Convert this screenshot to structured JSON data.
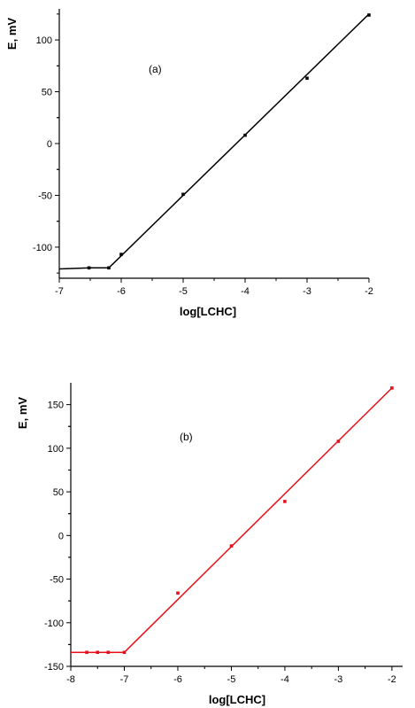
{
  "chart_data": [
    {
      "type": "line",
      "panel_label": "(a)",
      "xlabel": "log[LCHC]",
      "ylabel": "E, mV",
      "xlim": [
        -7,
        -2
      ],
      "ylim": [
        -130,
        130
      ],
      "x_ticks": [
        -7,
        -6,
        -5,
        -4,
        -3,
        -2
      ],
      "x_tick_labels": [
        "-7",
        "-6",
        "-5",
        "-4",
        "-3",
        "-2"
      ],
      "y_ticks": [
        -100,
        -50,
        0,
        50,
        100
      ],
      "y_tick_labels": [
        "-100",
        "-50",
        "0",
        "50",
        "100"
      ],
      "color": "#000000",
      "grid": false,
      "series": [
        {
          "x": [
            -6.52,
            -6.2,
            -6.0,
            -5.0,
            -4.0,
            -3.0,
            -2.0
          ],
          "y": [
            -120,
            -120,
            -107,
            -49,
            8,
            63,
            124
          ]
        }
      ],
      "fit_line": {
        "x": [
          -7.0,
          -6.5,
          -6.2,
          -2.0
        ],
        "y": [
          -121,
          -120,
          -120,
          125
        ]
      }
    },
    {
      "type": "line",
      "panel_label": "(b)",
      "xlabel": "log[LCHC]",
      "ylabel": "E, mV",
      "xlim": [
        -8,
        -1.8
      ],
      "ylim": [
        -150,
        175
      ],
      "x_ticks": [
        -8,
        -7,
        -6,
        -5,
        -4,
        -3,
        -2
      ],
      "x_tick_labels": [
        "-8",
        "-7",
        "-6",
        "-5",
        "-4",
        "-3",
        "-2"
      ],
      "y_ticks": [
        -150,
        -100,
        -50,
        0,
        50,
        100,
        150
      ],
      "y_tick_labels": [
        "-150",
        "-100",
        "-50",
        "0",
        "50",
        "100",
        "150"
      ],
      "color": "#e8101a",
      "grid": false,
      "series": [
        {
          "x": [
            -7.7,
            -7.5,
            -7.3,
            -7.0,
            -6.0,
            -5.0,
            -4.0,
            -3.0,
            -2.0
          ],
          "y": [
            -134,
            -134,
            -134,
            -134,
            -66,
            -12,
            39,
            108,
            169
          ]
        }
      ],
      "fit_line": {
        "x": [
          -8.0,
          -7.0,
          -2.0
        ],
        "y": [
          -134,
          -134,
          169
        ]
      }
    }
  ]
}
